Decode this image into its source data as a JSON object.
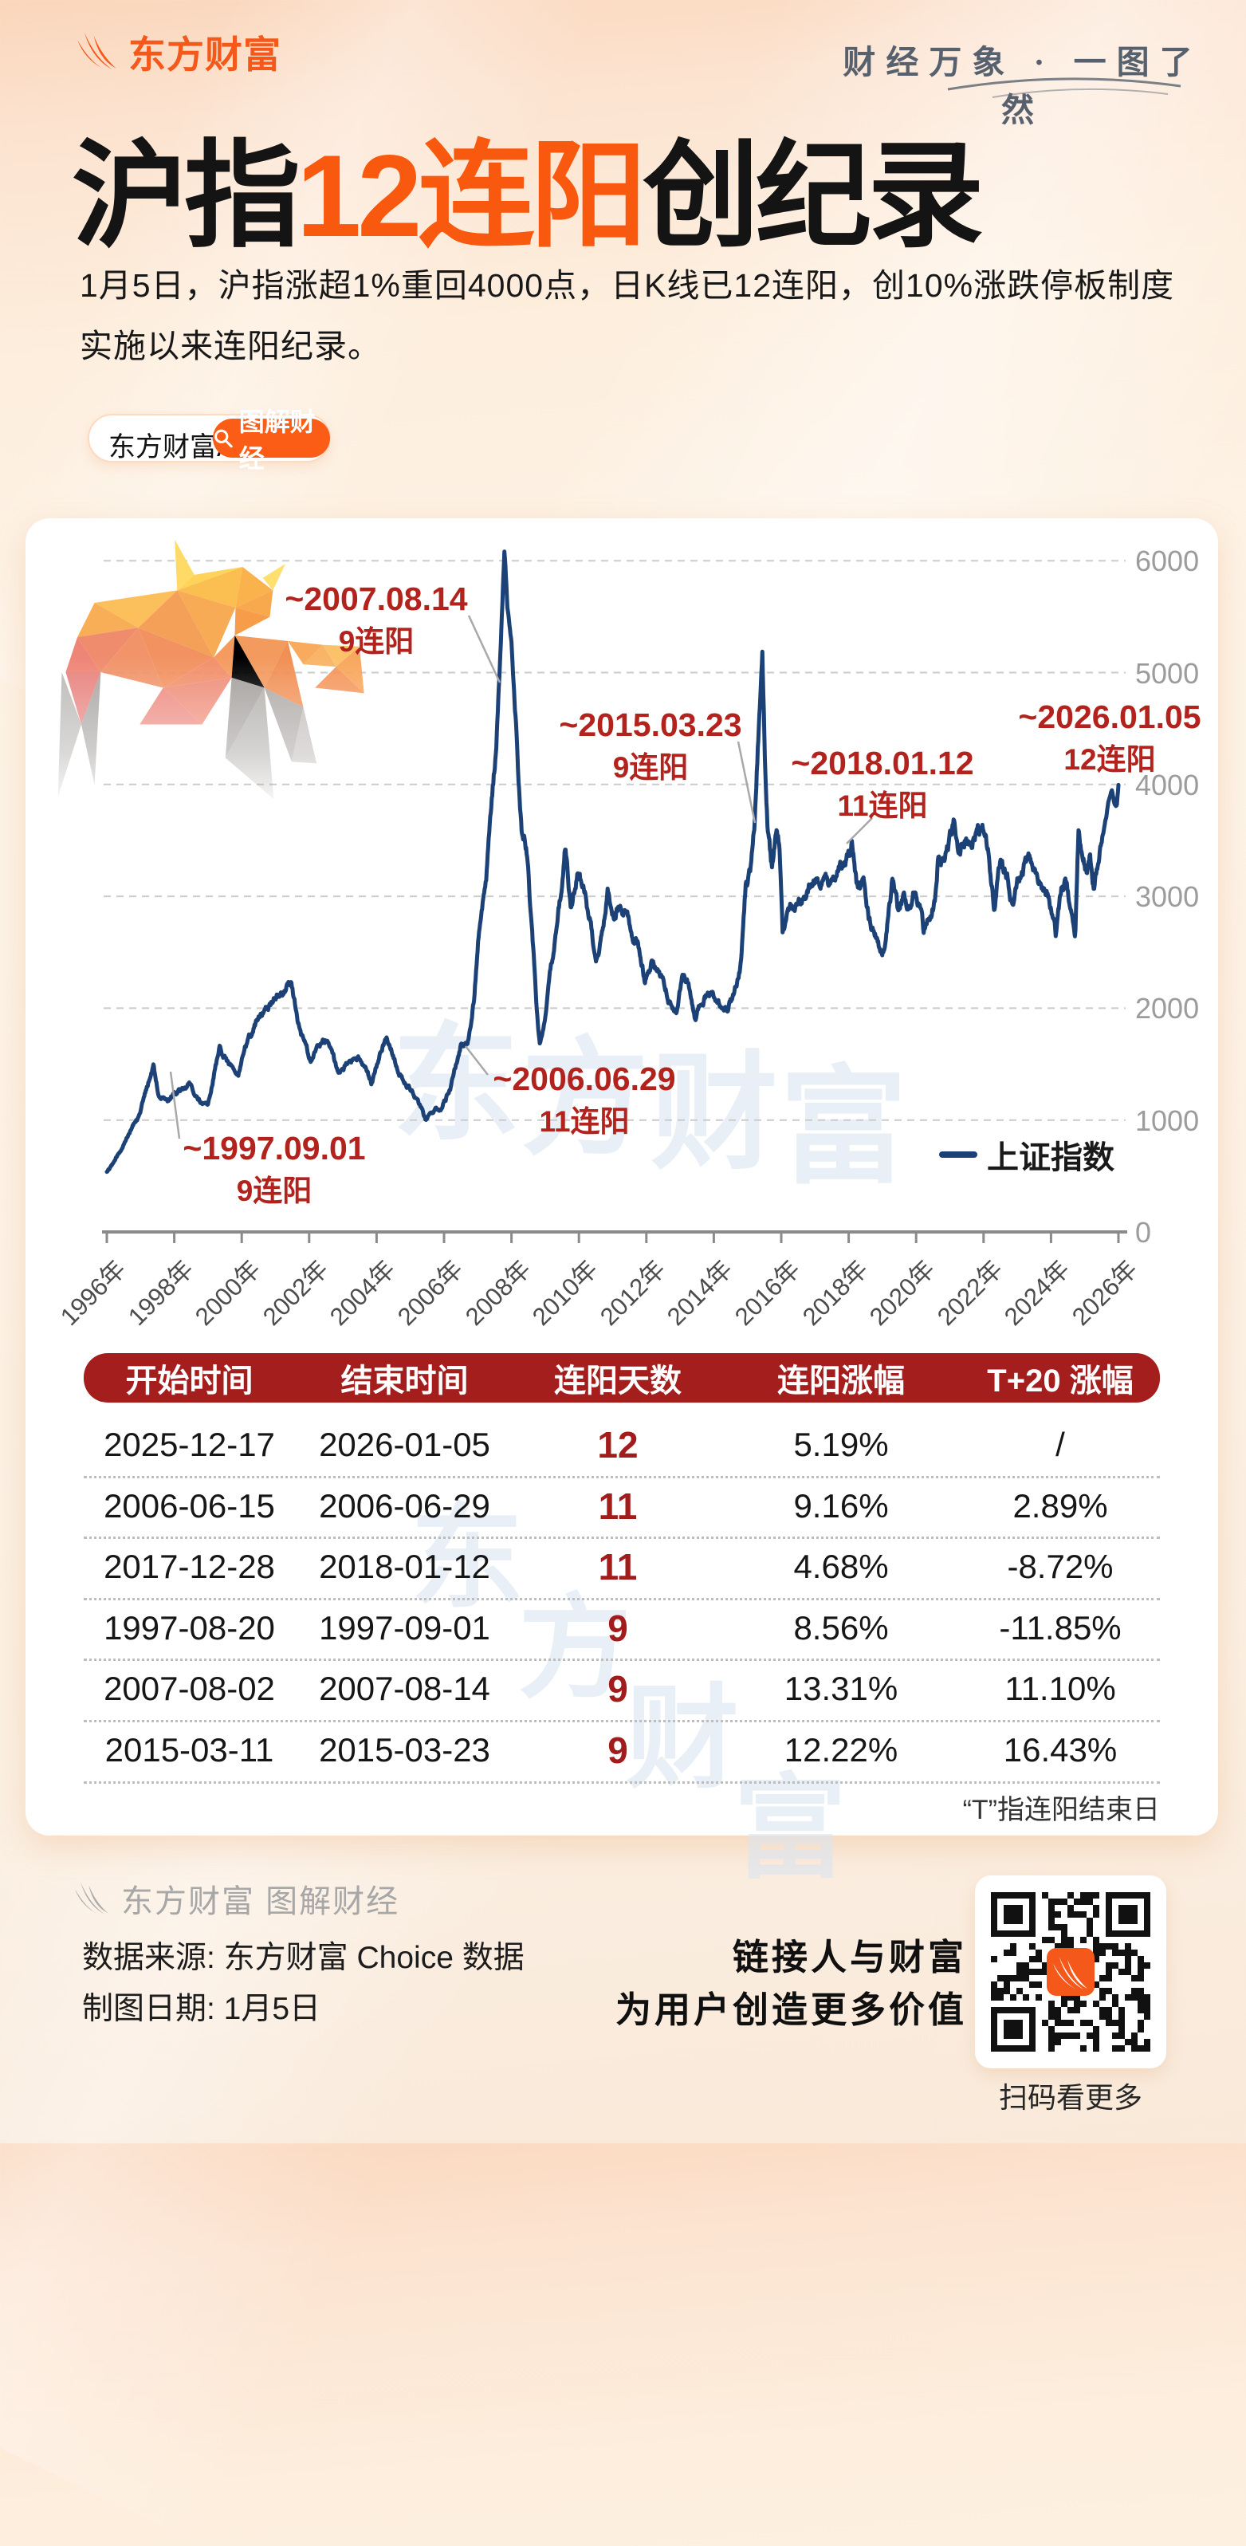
{
  "brand": {
    "logo_text": "东方财富",
    "tagline": "财经万象 · 一图了然",
    "app_badge": "东方财富APP",
    "series_badge": "图解财经"
  },
  "title": {
    "prefix": "沪指",
    "highlight": "12连阳",
    "suffix": "创纪录"
  },
  "subtitle": {
    "text": "1月5日，沪指涨超1%重回4000点，日K线已12连阳，创10%涨跌停板制度实施以来连阳纪录。"
  },
  "watermark": "东方财富",
  "accent_colors": {
    "orange": "#f8590e",
    "dark_red": "#a51e1e",
    "annotation_red": "#b3231d",
    "line_navy": "#1b4176"
  },
  "chart_data": {
    "type": "line",
    "title": "",
    "xlabel": "",
    "ylabel": "",
    "ylim": [
      0,
      6200
    ],
    "grid": true,
    "legend_position": "lower right",
    "legend_label": "上证指数",
    "series": [
      {
        "name": "上证指数",
        "color": "#1b4176"
      }
    ],
    "y_ticks": [
      0,
      1000,
      2000,
      3000,
      4000,
      5000,
      6000
    ],
    "x_ticks": [
      "1996年",
      "1998年",
      "2000年",
      "2002年",
      "2004年",
      "2006年",
      "2008年",
      "2010年",
      "2012年",
      "2014年",
      "2016年",
      "2018年",
      "2020年",
      "2022年",
      "2024年",
      "2026年"
    ],
    "anchors": [
      [
        1996.0,
        540
      ],
      [
        1996.25,
        640
      ],
      [
        1996.5,
        790
      ],
      [
        1996.75,
        950
      ],
      [
        1996.95,
        1050
      ],
      [
        1997.15,
        1250
      ],
      [
        1997.38,
        1480
      ],
      [
        1997.55,
        1200
      ],
      [
        1997.67,
        1220
      ],
      [
        1997.8,
        1180
      ],
      [
        1998.1,
        1270
      ],
      [
        1998.45,
        1330
      ],
      [
        1998.7,
        1180
      ],
      [
        1999.0,
        1130
      ],
      [
        1999.35,
        1660
      ],
      [
        1999.6,
        1520
      ],
      [
        1999.9,
        1390
      ],
      [
        2000.2,
        1740
      ],
      [
        2000.55,
        1950
      ],
      [
        2000.9,
        2060
      ],
      [
        2001.2,
        2130
      ],
      [
        2001.45,
        2240
      ],
      [
        2001.75,
        1780
      ],
      [
        2002.05,
        1520
      ],
      [
        2002.3,
        1680
      ],
      [
        2002.55,
        1730
      ],
      [
        2002.85,
        1420
      ],
      [
        2003.15,
        1500
      ],
      [
        2003.45,
        1580
      ],
      [
        2003.85,
        1320
      ],
      [
        2004.1,
        1600
      ],
      [
        2004.3,
        1780
      ],
      [
        2004.65,
        1420
      ],
      [
        2004.95,
        1300
      ],
      [
        2005.2,
        1180
      ],
      [
        2005.45,
        1010
      ],
      [
        2005.7,
        1080
      ],
      [
        2005.95,
        1120
      ],
      [
        2006.2,
        1300
      ],
      [
        2006.49,
        1672
      ],
      [
        2006.7,
        1680
      ],
      [
        2006.9,
        2100
      ],
      [
        2007.05,
        2750
      ],
      [
        2007.25,
        3100
      ],
      [
        2007.42,
        3900
      ],
      [
        2007.55,
        4300
      ],
      [
        2007.62,
        4820
      ],
      [
        2007.7,
        5400
      ],
      [
        2007.79,
        6124
      ],
      [
        2007.88,
        5600
      ],
      [
        2008.0,
        5250
      ],
      [
        2008.15,
        4400
      ],
      [
        2008.3,
        3600
      ],
      [
        2008.45,
        3400
      ],
      [
        2008.6,
        2750
      ],
      [
        2008.75,
        2000
      ],
      [
        2008.84,
        1664
      ],
      [
        2009.0,
        1950
      ],
      [
        2009.2,
        2400
      ],
      [
        2009.45,
        3000
      ],
      [
        2009.6,
        3478
      ],
      [
        2009.75,
        2900
      ],
      [
        2009.95,
        3200
      ],
      [
        2010.15,
        3050
      ],
      [
        2010.35,
        2750
      ],
      [
        2010.5,
        2400
      ],
      [
        2010.7,
        2650
      ],
      [
        2010.85,
        3050
      ],
      [
        2011.05,
        2800
      ],
      [
        2011.25,
        2950
      ],
      [
        2011.5,
        2750
      ],
      [
        2011.75,
        2550
      ],
      [
        2011.95,
        2250
      ],
      [
        2012.15,
        2400
      ],
      [
        2012.4,
        2300
      ],
      [
        2012.65,
        2100
      ],
      [
        2012.9,
        1970
      ],
      [
        2013.05,
        2300
      ],
      [
        2013.25,
        2220
      ],
      [
        2013.45,
        1880
      ],
      [
        2013.65,
        2080
      ],
      [
        2013.9,
        2150
      ],
      [
        2014.15,
        2050
      ],
      [
        2014.4,
        2020
      ],
      [
        2014.6,
        2100
      ],
      [
        2014.8,
        2400
      ],
      [
        2014.95,
        3100
      ],
      [
        2015.1,
        3250
      ],
      [
        2015.22,
        3687
      ],
      [
        2015.33,
        4450
      ],
      [
        2015.44,
        5178
      ],
      [
        2015.52,
        4100
      ],
      [
        2015.6,
        3550
      ],
      [
        2015.72,
        3250
      ],
      [
        2015.85,
        3600
      ],
      [
        2015.95,
        3450
      ],
      [
        2016.04,
        2638
      ],
      [
        2016.2,
        2850
      ],
      [
        2016.4,
        2950
      ],
      [
        2016.6,
        2930
      ],
      [
        2016.85,
        3100
      ],
      [
        2017.05,
        3120
      ],
      [
        2017.3,
        3150
      ],
      [
        2017.5,
        3120
      ],
      [
        2017.7,
        3330
      ],
      [
        2017.9,
        3350
      ],
      [
        2018.03,
        3428
      ],
      [
        2018.09,
        3560
      ],
      [
        2018.25,
        3100
      ],
      [
        2018.45,
        3150
      ],
      [
        2018.6,
        2800
      ],
      [
        2018.8,
        2650
      ],
      [
        2018.98,
        2480
      ],
      [
        2019.1,
        2600
      ],
      [
        2019.3,
        3150
      ],
      [
        2019.45,
        2900
      ],
      [
        2019.6,
        3000
      ],
      [
        2019.8,
        2900
      ],
      [
        2019.95,
        3060
      ],
      [
        2020.15,
        2850
      ],
      [
        2020.22,
        2680
      ],
      [
        2020.4,
        2860
      ],
      [
        2020.55,
        2950
      ],
      [
        2020.65,
        3330
      ],
      [
        2020.85,
        3300
      ],
      [
        2021.0,
        3480
      ],
      [
        2021.12,
        3690
      ],
      [
        2021.25,
        3420
      ],
      [
        2021.45,
        3550
      ],
      [
        2021.65,
        3520
      ],
      [
        2021.85,
        3570
      ],
      [
        2022.0,
        3630
      ],
      [
        2022.15,
        3400
      ],
      [
        2022.32,
        2880
      ],
      [
        2022.5,
        3280
      ],
      [
        2022.7,
        3200
      ],
      [
        2022.85,
        2920
      ],
      [
        2023.0,
        3100
      ],
      [
        2023.2,
        3280
      ],
      [
        2023.35,
        3350
      ],
      [
        2023.55,
        3200
      ],
      [
        2023.75,
        3100
      ],
      [
        2023.95,
        2950
      ],
      [
        2024.1,
        2750
      ],
      [
        2024.14,
        2640
      ],
      [
        2024.3,
        3050
      ],
      [
        2024.45,
        3120
      ],
      [
        2024.6,
        2900
      ],
      [
        2024.72,
        2720
      ],
      [
        2024.78,
        3350
      ],
      [
        2024.82,
        3674
      ],
      [
        2024.95,
        3350
      ],
      [
        2025.05,
        3250
      ],
      [
        2025.15,
        3350
      ],
      [
        2025.28,
        3060
      ],
      [
        2025.4,
        3350
      ],
      [
        2025.55,
        3550
      ],
      [
        2025.7,
        3820
      ],
      [
        2025.8,
        3950
      ],
      [
        2025.87,
        3830
      ],
      [
        2025.95,
        3800
      ],
      [
        2026.0,
        4005
      ]
    ],
    "annotations": [
      {
        "date": "~2007.08.14",
        "streak": "9连阳",
        "cx": 472,
        "top": 728,
        "leader": [
          588,
          772,
          627,
          856
        ]
      },
      {
        "date": "~2015.03.23",
        "streak": "9连阳",
        "cx": 816,
        "top": 886,
        "leader": [
          926,
          930,
          947,
          1032
        ]
      },
      {
        "date": "~2018.01.12",
        "streak": "11连阳",
        "cx": 1107,
        "top": 934,
        "leader": [
          1094,
          1026,
          1062,
          1058
        ]
      },
      {
        "date": "~2026.01.05",
        "streak": "12连阳",
        "cx": 1392,
        "top": 876,
        "leader": null
      },
      {
        "date": "~2006.06.29",
        "streak": "11连阳",
        "cx": 733,
        "top": 1330,
        "leader": [
          612,
          1348,
          584,
          1312
        ]
      },
      {
        "date": "~1997.09.01",
        "streak": "9连阳",
        "cx": 344,
        "top": 1417,
        "leader": [
          214,
          1344,
          225,
          1428
        ]
      }
    ]
  },
  "table": {
    "headers": [
      "开始时间",
      "结束时间",
      "连阳天数",
      "连阳涨幅",
      "T+20 涨幅"
    ],
    "rows": [
      [
        "2025-12-17",
        "2026-01-05",
        "12",
        "5.19%",
        "/"
      ],
      [
        "2006-06-15",
        "2006-06-29",
        "11",
        "9.16%",
        "2.89%"
      ],
      [
        "2017-12-28",
        "2018-01-12",
        "11",
        "4.68%",
        "-8.72%"
      ],
      [
        "1997-08-20",
        "1997-09-01",
        "9",
        "8.56%",
        "-11.85%"
      ],
      [
        "2007-08-02",
        "2007-08-14",
        "9",
        "13.31%",
        "11.10%"
      ],
      [
        "2015-03-11",
        "2015-03-23",
        "9",
        "12.22%",
        "16.43%"
      ]
    ],
    "footnote": "“T”指连阳结束日"
  },
  "footer": {
    "brand_line": "东方财富 图解财经",
    "source": "数据来源: 东方财富 Choice 数据",
    "date": "制图日期: 1月5日",
    "slogan_line1": "链接人与财富",
    "slogan_line2": "为用户创造更多价值",
    "qr_caption": "扫码看更多"
  }
}
